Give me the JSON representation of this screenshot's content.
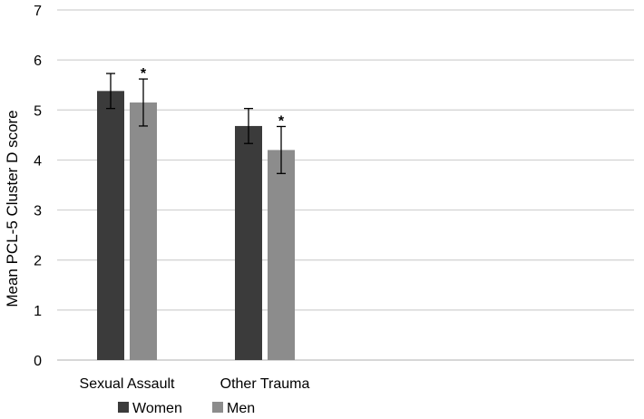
{
  "chart_data": {
    "type": "bar",
    "title": "",
    "xlabel": "",
    "ylabel": "Mean PCL-5 Cluster D score",
    "ylim": [
      0,
      7
    ],
    "yticks": [
      0,
      1,
      2,
      3,
      4,
      5,
      6,
      7
    ],
    "grid": true,
    "legend_position": "bottom",
    "categories": [
      "Sexual Assault",
      "Other Trauma"
    ],
    "series": [
      {
        "name": "Women",
        "color": "#3b3b3b",
        "values": [
          5.38,
          4.68
        ],
        "error": [
          [
            5.03,
            5.73
          ],
          [
            4.33,
            5.03
          ]
        ],
        "annotations": [
          "",
          ""
        ]
      },
      {
        "name": "Men",
        "color": "#8c8c8c",
        "values": [
          5.15,
          4.2
        ],
        "error": [
          [
            4.68,
            5.62
          ],
          [
            3.73,
            4.67
          ]
        ],
        "annotations": [
          "*",
          "*"
        ]
      }
    ]
  }
}
